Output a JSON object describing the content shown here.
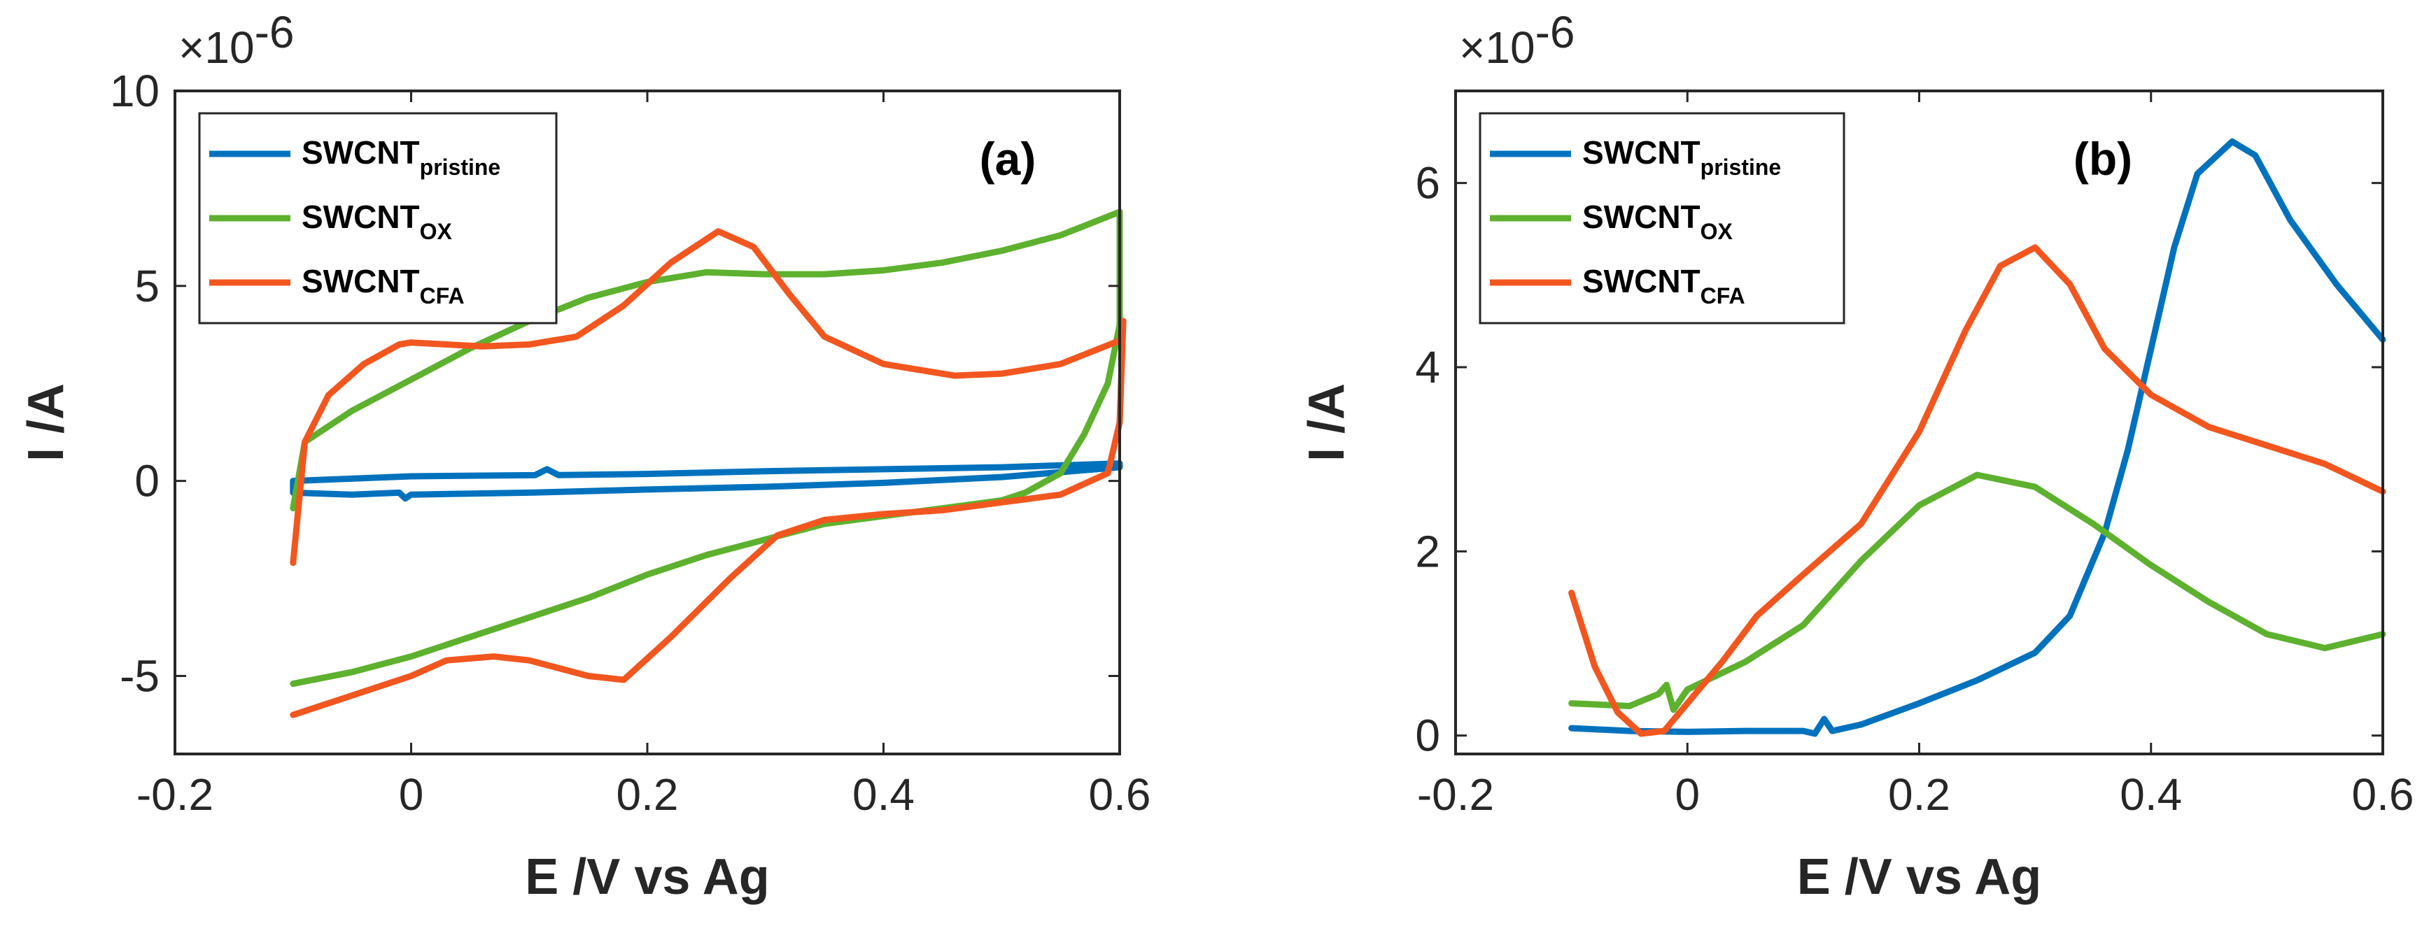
{
  "figure": {
    "x_label": "E /V vs Ag",
    "y_label": "I /A",
    "exponent_label": "×10",
    "exponent_power": "-6"
  },
  "colors": {
    "pristine": "#0072BD",
    "ox": "#5DB12E",
    "cfa": "#F2561F"
  },
  "chart_data": [
    {
      "type": "line",
      "panel": "(a)",
      "xlabel": "E /V vs Ag",
      "ylabel": "I /A",
      "y_exponent": "×10-6",
      "xlim": [
        -0.2,
        0.6
      ],
      "ylim": [
        -7,
        10
      ],
      "x_ticks": [
        -0.2,
        0,
        0.2,
        0.4,
        0.6
      ],
      "x_tick_labels": [
        "-0.2",
        "0",
        "0.2",
        "0.4",
        "0.6"
      ],
      "y_ticks": [
        -5,
        0,
        5,
        10
      ],
      "y_tick_labels": [
        "-5",
        "0",
        "5",
        "10"
      ],
      "legend": [
        {
          "key": "pristine",
          "base": "SWCNT",
          "sub": "pristine"
        },
        {
          "key": "ox",
          "base": "SWCNT",
          "sub": "OX"
        },
        {
          "key": "cfa",
          "base": "SWCNT",
          "sub": "CFA"
        }
      ],
      "series": [
        {
          "name": "SWCNT_pristine",
          "key": "pristine",
          "points": [
            [
              -0.1,
              -0.3
            ],
            [
              -0.05,
              -0.35
            ],
            [
              -0.01,
              -0.3
            ],
            [
              -0.005,
              -0.45
            ],
            [
              0.0,
              -0.35
            ],
            [
              0.1,
              -0.3
            ],
            [
              0.2,
              -0.22
            ],
            [
              0.3,
              -0.15
            ],
            [
              0.4,
              -0.05
            ],
            [
              0.5,
              0.1
            ],
            [
              0.6,
              0.35
            ],
            [
              0.6,
              0.45
            ],
            [
              0.5,
              0.35
            ],
            [
              0.4,
              0.3
            ],
            [
              0.3,
              0.25
            ],
            [
              0.2,
              0.18
            ],
            [
              0.125,
              0.15
            ],
            [
              0.115,
              0.3
            ],
            [
              0.105,
              0.15
            ],
            [
              0.0,
              0.12
            ],
            [
              -0.1,
              0.0
            ],
            [
              -0.1,
              -0.3
            ]
          ]
        },
        {
          "name": "SWCNT_OX",
          "key": "ox",
          "points": [
            [
              -0.1,
              -0.7
            ],
            [
              -0.09,
              1.0
            ],
            [
              -0.05,
              1.8
            ],
            [
              0.0,
              2.6
            ],
            [
              0.05,
              3.4
            ],
            [
              0.1,
              4.1
            ],
            [
              0.15,
              4.7
            ],
            [
              0.2,
              5.1
            ],
            [
              0.25,
              5.35
            ],
            [
              0.3,
              5.3
            ],
            [
              0.35,
              5.3
            ],
            [
              0.4,
              5.4
            ],
            [
              0.45,
              5.6
            ],
            [
              0.5,
              5.9
            ],
            [
              0.55,
              6.3
            ],
            [
              0.6,
              6.9
            ],
            [
              0.6,
              4.0
            ],
            [
              0.59,
              2.5
            ],
            [
              0.57,
              1.2
            ],
            [
              0.55,
              0.2
            ],
            [
              0.52,
              -0.3
            ],
            [
              0.5,
              -0.5
            ],
            [
              0.45,
              -0.7
            ],
            [
              0.4,
              -0.9
            ],
            [
              0.35,
              -1.1
            ],
            [
              0.3,
              -1.5
            ],
            [
              0.25,
              -1.9
            ],
            [
              0.2,
              -2.4
            ],
            [
              0.15,
              -3.0
            ],
            [
              0.1,
              -3.5
            ],
            [
              0.05,
              -4.0
            ],
            [
              0.0,
              -4.5
            ],
            [
              -0.05,
              -4.9
            ],
            [
              -0.1,
              -5.2
            ]
          ]
        },
        {
          "name": "SWCNT_CFA",
          "key": "cfa",
          "points": [
            [
              -0.1,
              -2.1
            ],
            [
              -0.09,
              1.0
            ],
            [
              -0.07,
              2.2
            ],
            [
              -0.04,
              3.0
            ],
            [
              -0.01,
              3.5
            ],
            [
              0.0,
              3.55
            ],
            [
              0.03,
              3.5
            ],
            [
              0.06,
              3.45
            ],
            [
              0.1,
              3.5
            ],
            [
              0.14,
              3.7
            ],
            [
              0.18,
              4.5
            ],
            [
              0.22,
              5.6
            ],
            [
              0.26,
              6.4
            ],
            [
              0.29,
              6.0
            ],
            [
              0.32,
              4.8
            ],
            [
              0.35,
              3.7
            ],
            [
              0.4,
              3.0
            ],
            [
              0.46,
              2.7
            ],
            [
              0.5,
              2.75
            ],
            [
              0.55,
              3.0
            ],
            [
              0.6,
              3.6
            ],
            [
              0.603,
              4.1
            ],
            [
              0.6,
              1.5
            ],
            [
              0.59,
              0.2
            ],
            [
              0.55,
              -0.35
            ],
            [
              0.5,
              -0.55
            ],
            [
              0.45,
              -0.75
            ],
            [
              0.4,
              -0.85
            ],
            [
              0.35,
              -1.0
            ],
            [
              0.31,
              -1.4
            ],
            [
              0.27,
              -2.5
            ],
            [
              0.22,
              -4.0
            ],
            [
              0.18,
              -5.1
            ],
            [
              0.15,
              -5.0
            ],
            [
              0.1,
              -4.6
            ],
            [
              0.07,
              -4.5
            ],
            [
              0.03,
              -4.6
            ],
            [
              0.0,
              -5.0
            ],
            [
              -0.05,
              -5.5
            ],
            [
              -0.1,
              -6.0
            ]
          ]
        }
      ]
    },
    {
      "type": "line",
      "panel": "(b)",
      "xlabel": "E /V vs Ag",
      "ylabel": "I /A",
      "y_exponent": "×10-6",
      "xlim": [
        -0.2,
        0.6
      ],
      "ylim": [
        -0.2,
        7
      ],
      "x_ticks": [
        -0.2,
        0,
        0.2,
        0.4,
        0.6
      ],
      "x_tick_labels": [
        "-0.2",
        "0",
        "0.2",
        "0.4",
        "0.6"
      ],
      "y_ticks": [
        0,
        2,
        4,
        6
      ],
      "y_tick_labels": [
        "0",
        "2",
        "4",
        "6"
      ],
      "legend": [
        {
          "key": "pristine",
          "base": "SWCNT",
          "sub": "pristine"
        },
        {
          "key": "ox",
          "base": "SWCNT",
          "sub": "OX"
        },
        {
          "key": "cfa",
          "base": "SWCNT",
          "sub": "CFA"
        }
      ],
      "series": [
        {
          "name": "SWCNT_pristine",
          "key": "pristine",
          "points": [
            [
              -0.1,
              0.08
            ],
            [
              -0.05,
              0.05
            ],
            [
              0.0,
              0.04
            ],
            [
              0.05,
              0.05
            ],
            [
              0.1,
              0.05
            ],
            [
              0.11,
              0.02
            ],
            [
              0.118,
              0.18
            ],
            [
              0.125,
              0.05
            ],
            [
              0.15,
              0.12
            ],
            [
              0.2,
              0.35
            ],
            [
              0.25,
              0.6
            ],
            [
              0.3,
              0.9
            ],
            [
              0.33,
              1.3
            ],
            [
              0.36,
              2.2
            ],
            [
              0.38,
              3.1
            ],
            [
              0.4,
              4.2
            ],
            [
              0.42,
              5.3
            ],
            [
              0.44,
              6.1
            ],
            [
              0.47,
              6.45
            ],
            [
              0.49,
              6.3
            ],
            [
              0.52,
              5.6
            ],
            [
              0.56,
              4.9
            ],
            [
              0.6,
              4.3
            ]
          ]
        },
        {
          "name": "SWCNT_OX",
          "key": "ox",
          "points": [
            [
              -0.1,
              0.35
            ],
            [
              -0.05,
              0.32
            ],
            [
              -0.025,
              0.45
            ],
            [
              -0.018,
              0.55
            ],
            [
              -0.012,
              0.28
            ],
            [
              0.0,
              0.5
            ],
            [
              0.05,
              0.8
            ],
            [
              0.1,
              1.2
            ],
            [
              0.15,
              1.9
            ],
            [
              0.2,
              2.5
            ],
            [
              0.25,
              2.83
            ],
            [
              0.3,
              2.7
            ],
            [
              0.35,
              2.3
            ],
            [
              0.4,
              1.85
            ],
            [
              0.45,
              1.45
            ],
            [
              0.5,
              1.1
            ],
            [
              0.55,
              0.95
            ],
            [
              0.6,
              1.1
            ]
          ]
        },
        {
          "name": "SWCNT_CFA",
          "key": "cfa",
          "points": [
            [
              -0.1,
              1.55
            ],
            [
              -0.08,
              0.75
            ],
            [
              -0.06,
              0.25
            ],
            [
              -0.04,
              0.02
            ],
            [
              -0.02,
              0.05
            ],
            [
              0.0,
              0.35
            ],
            [
              0.03,
              0.8
            ],
            [
              0.06,
              1.3
            ],
            [
              0.1,
              1.75
            ],
            [
              0.15,
              2.3
            ],
            [
              0.2,
              3.3
            ],
            [
              0.24,
              4.4
            ],
            [
              0.27,
              5.1
            ],
            [
              0.3,
              5.3
            ],
            [
              0.33,
              4.9
            ],
            [
              0.36,
              4.2
            ],
            [
              0.4,
              3.7
            ],
            [
              0.45,
              3.35
            ],
            [
              0.5,
              3.15
            ],
            [
              0.55,
              2.95
            ],
            [
              0.6,
              2.65
            ]
          ]
        }
      ]
    }
  ]
}
